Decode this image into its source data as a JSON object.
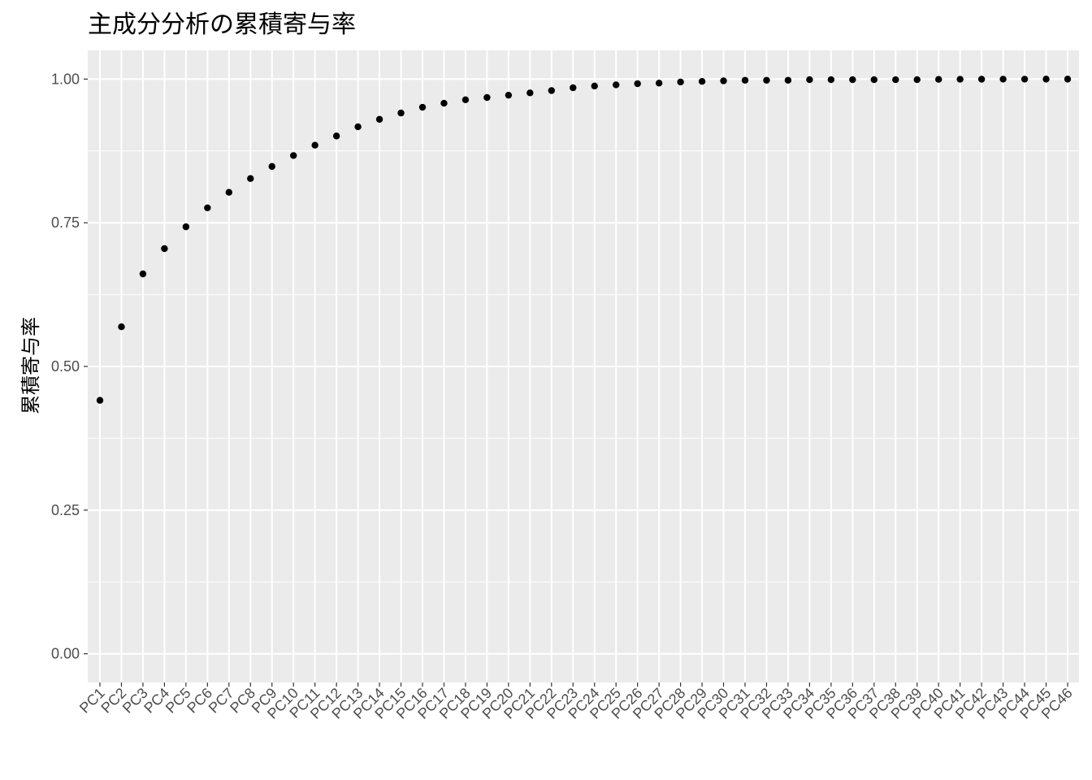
{
  "chart_data": {
    "type": "scatter",
    "title": "主成分分析の累積寄与率",
    "xlabel": "",
    "ylabel": "累積寄与率",
    "ylim": [
      -0.05,
      1.05
    ],
    "y_ticks": [
      0.0,
      0.25,
      0.5,
      0.75,
      1.0
    ],
    "y_tick_labels": [
      "0.00",
      "0.25",
      "0.50",
      "0.75",
      "1.00"
    ],
    "grid": true,
    "legend": "none",
    "colors": {
      "panel": "#EBEBEB",
      "grid": "#FFFFFF",
      "point": "#000000",
      "tick": "#4D4D4D",
      "text": "#000000"
    },
    "categories": [
      "PC1",
      "PC2",
      "PC3",
      "PC4",
      "PC5",
      "PC6",
      "PC7",
      "PC8",
      "PC9",
      "PC10",
      "PC11",
      "PC12",
      "PC13",
      "PC14",
      "PC15",
      "PC16",
      "PC17",
      "PC18",
      "PC19",
      "PC20",
      "PC21",
      "PC22",
      "PC23",
      "PC24",
      "PC25",
      "PC26",
      "PC27",
      "PC28",
      "PC29",
      "PC30",
      "PC31",
      "PC32",
      "PC33",
      "PC34",
      "PC35",
      "PC36",
      "PC37",
      "PC38",
      "PC39",
      "PC40",
      "PC41",
      "PC42",
      "PC43",
      "PC44",
      "PC45",
      "PC46"
    ],
    "values": [
      0.441,
      0.569,
      0.661,
      0.705,
      0.743,
      0.776,
      0.803,
      0.827,
      0.848,
      0.867,
      0.885,
      0.901,
      0.917,
      0.93,
      0.941,
      0.951,
      0.958,
      0.964,
      0.968,
      0.972,
      0.976,
      0.98,
      0.985,
      0.988,
      0.99,
      0.992,
      0.993,
      0.995,
      0.996,
      0.997,
      0.998,
      0.998,
      0.998,
      0.999,
      0.999,
      0.999,
      0.999,
      0.999,
      0.999,
      0.9995,
      0.9997,
      0.9998,
      0.9999,
      0.9999,
      1.0,
      1.0
    ]
  }
}
